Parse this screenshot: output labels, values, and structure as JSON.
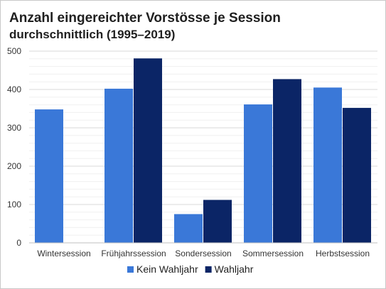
{
  "chart_data": {
    "type": "bar",
    "title": "Anzahl eingereichter Vorstösse je Session",
    "subtitle": "durchschnittlich (1995–2019)",
    "categories": [
      "Wintersession",
      "Frühjahrssession",
      "Sondersession",
      "Sommersession",
      "Herbstsession"
    ],
    "series": [
      {
        "name": "Kein Wahljahr",
        "color": "#3a78d8",
        "values": [
          348,
          402,
          75,
          361,
          405
        ]
      },
      {
        "name": "Wahljahr",
        "color": "#0b2566",
        "values": [
          null,
          481,
          112,
          427,
          352
        ]
      }
    ],
    "ylim": [
      0,
      500
    ],
    "yticks": [
      0,
      100,
      200,
      300,
      400,
      500
    ],
    "grid": true,
    "legend_position": "bottom"
  }
}
